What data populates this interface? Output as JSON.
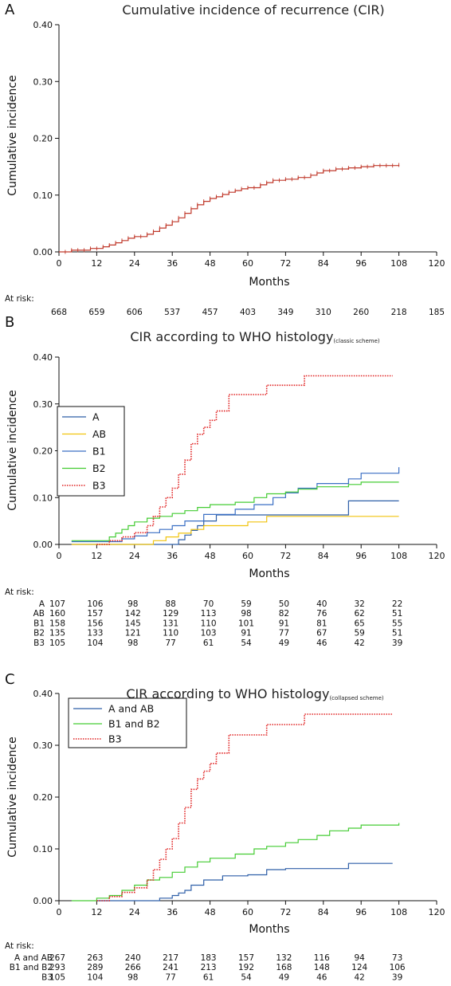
{
  "panels": [
    {
      "letter": "A",
      "title": "Cumulative incidence of recurrence (CIR)",
      "title_small": "",
      "ylabel": "Cumulative incidence",
      "xlabel": "Months",
      "at_risk_label": "At risk:",
      "risk_columns": [
        0,
        12,
        24,
        36,
        48,
        60,
        72,
        84,
        96,
        108,
        120
      ],
      "risk_rows": [
        {
          "label": "",
          "values": [
            "668",
            "659",
            "606",
            "537",
            "457",
            "403",
            "349",
            "310",
            "260",
            "218",
            "185"
          ]
        }
      ]
    },
    {
      "letter": "B",
      "title": "CIR according to WHO histology",
      "title_small": "(classic scheme)",
      "ylabel": "Cumulative incidence",
      "xlabel": "Months",
      "at_risk_label": "At risk:",
      "risk_columns": [
        0,
        12,
        24,
        36,
        48,
        60,
        72,
        84,
        96,
        108
      ],
      "risk_rows": [
        {
          "label": "A",
          "values": [
            "107",
            "106",
            "98",
            "88",
            "70",
            "59",
            "50",
            "40",
            "32",
            "22"
          ]
        },
        {
          "label": "AB",
          "values": [
            "160",
            "157",
            "142",
            "129",
            "113",
            "98",
            "82",
            "76",
            "62",
            "51"
          ]
        },
        {
          "label": "B1",
          "values": [
            "158",
            "156",
            "145",
            "131",
            "110",
            "101",
            "91",
            "81",
            "65",
            "55"
          ]
        },
        {
          "label": "B2",
          "values": [
            "135",
            "133",
            "121",
            "110",
            "103",
            "91",
            "77",
            "67",
            "59",
            "51"
          ]
        },
        {
          "label": "B3",
          "values": [
            "105",
            "104",
            "98",
            "77",
            "61",
            "54",
            "49",
            "46",
            "42",
            "39"
          ]
        }
      ]
    },
    {
      "letter": "C",
      "title": "CIR according to WHO histology",
      "title_small": "(collapsed scheme)",
      "ylabel": "Cumulative incidence",
      "xlabel": "Months",
      "at_risk_label": "At risk:",
      "risk_columns": [
        0,
        12,
        24,
        36,
        48,
        60,
        72,
        84,
        96,
        108
      ],
      "risk_rows": [
        {
          "label": "A and AB",
          "values": [
            "267",
            "263",
            "240",
            "217",
            "183",
            "157",
            "132",
            "116",
            "94",
            "73"
          ]
        },
        {
          "label": "B1 and B2",
          "values": [
            "293",
            "289",
            "266",
            "241",
            "213",
            "192",
            "168",
            "148",
            "124",
            "106"
          ]
        },
        {
          "label": "B3",
          "values": [
            "105",
            "104",
            "98",
            "77",
            "61",
            "54",
            "49",
            "46",
            "42",
            "39"
          ]
        }
      ]
    }
  ],
  "chart_data": [
    {
      "type": "line",
      "step": true,
      "title": "Cumulative incidence of recurrence (CIR)",
      "xlabel": "Months",
      "ylabel": "Cumulative incidence",
      "xlim": [
        0,
        120
      ],
      "ylim": [
        0,
        0.4
      ],
      "xticks": [
        "0",
        "12",
        "24",
        "36",
        "48",
        "60",
        "72",
        "84",
        "96",
        "108",
        "120"
      ],
      "yticks": [
        "0.00",
        "0.10",
        "0.20",
        "0.30",
        "0.40"
      ],
      "grid": false,
      "legend": null,
      "series": [
        {
          "color": "#c0392b",
          "dash": "solid",
          "censor_marks": true,
          "x": [
            0,
            4,
            10,
            14,
            16,
            18,
            20,
            22,
            24,
            28,
            30,
            32,
            34,
            36,
            38,
            40,
            42,
            44,
            46,
            48,
            50,
            52,
            54,
            56,
            58,
            60,
            64,
            66,
            68,
            72,
            76,
            80,
            82,
            84,
            88,
            92,
            96,
            100,
            108
          ],
          "y": [
            0.0,
            0.003,
            0.006,
            0.009,
            0.012,
            0.016,
            0.02,
            0.024,
            0.027,
            0.031,
            0.036,
            0.042,
            0.047,
            0.053,
            0.06,
            0.068,
            0.076,
            0.083,
            0.089,
            0.094,
            0.097,
            0.101,
            0.105,
            0.108,
            0.111,
            0.113,
            0.118,
            0.122,
            0.126,
            0.128,
            0.131,
            0.135,
            0.139,
            0.143,
            0.146,
            0.148,
            0.15,
            0.152,
            0.153
          ]
        }
      ]
    },
    {
      "type": "line",
      "step": true,
      "title": "CIR according to WHO histology (classic scheme)",
      "xlabel": "Months",
      "ylabel": "Cumulative incidence",
      "xlim": [
        0,
        120
      ],
      "ylim": [
        0,
        0.4
      ],
      "xticks": [
        "0",
        "12",
        "24",
        "36",
        "48",
        "60",
        "72",
        "84",
        "96",
        "108",
        "120"
      ],
      "yticks": [
        "0.00",
        "0.10",
        "0.20",
        "0.30",
        "0.40"
      ],
      "grid": false,
      "legend": "left",
      "series": [
        {
          "name": "A",
          "color": "#2e5fa8",
          "dash": "solid",
          "x": [
            4,
            14,
            38,
            40,
            42,
            44,
            46,
            50,
            92,
            108
          ],
          "y": [
            0.0,
            0.0,
            0.01,
            0.02,
            0.03,
            0.04,
            0.05,
            0.063,
            0.093,
            0.093
          ]
        },
        {
          "name": "AB",
          "color": "#f1c40f",
          "dash": "solid",
          "x": [
            4,
            28,
            30,
            34,
            38,
            42,
            46,
            60,
            66,
            108
          ],
          "y": [
            0.0,
            0.0,
            0.008,
            0.016,
            0.024,
            0.032,
            0.04,
            0.048,
            0.06,
            0.06
          ]
        },
        {
          "name": "B1",
          "color": "#3a6fc4",
          "dash": "solid",
          "x": [
            4,
            16,
            20,
            24,
            28,
            32,
            36,
            40,
            46,
            56,
            62,
            68,
            72,
            76,
            82,
            92,
            96,
            108
          ],
          "y": [
            0.006,
            0.006,
            0.012,
            0.018,
            0.025,
            0.032,
            0.04,
            0.05,
            0.064,
            0.075,
            0.085,
            0.1,
            0.11,
            0.12,
            0.13,
            0.14,
            0.152,
            0.165
          ]
        },
        {
          "name": "B2",
          "color": "#44cc33",
          "dash": "solid",
          "x": [
            4,
            12,
            16,
            18,
            20,
            22,
            24,
            28,
            32,
            36,
            40,
            44,
            48,
            56,
            62,
            66,
            72,
            76,
            82,
            92,
            96,
            108
          ],
          "y": [
            0.008,
            0.008,
            0.016,
            0.024,
            0.032,
            0.04,
            0.048,
            0.056,
            0.06,
            0.066,
            0.072,
            0.079,
            0.085,
            0.09,
            0.1,
            0.108,
            0.112,
            0.118,
            0.123,
            0.128,
            0.133,
            0.133
          ]
        },
        {
          "name": "B3",
          "color": "#e02020",
          "dash": "dotted",
          "x": [
            12,
            16,
            20,
            24,
            28,
            30,
            32,
            34,
            36,
            38,
            40,
            42,
            44,
            46,
            48,
            50,
            54,
            66,
            78,
            106
          ],
          "y": [
            0.0,
            0.008,
            0.016,
            0.025,
            0.04,
            0.06,
            0.08,
            0.1,
            0.12,
            0.15,
            0.18,
            0.215,
            0.235,
            0.25,
            0.265,
            0.285,
            0.32,
            0.34,
            0.36,
            0.36
          ]
        }
      ]
    },
    {
      "type": "line",
      "step": true,
      "title": "CIR according to WHO histology (collapsed scheme)",
      "xlabel": "Months",
      "ylabel": "Cumulative incidence",
      "xlim": [
        0,
        120
      ],
      "ylim": [
        0,
        0.4
      ],
      "xticks": [
        "0",
        "12",
        "24",
        "36",
        "48",
        "60",
        "72",
        "84",
        "96",
        "108",
        "120"
      ],
      "yticks": [
        "0.00",
        "0.10",
        "0.20",
        "0.30",
        "0.40"
      ],
      "grid": false,
      "legend": "top-left",
      "series": [
        {
          "name": "A and AB",
          "color": "#2e5fa8",
          "dash": "solid",
          "x": [
            12,
            28,
            32,
            36,
            38,
            40,
            42,
            46,
            52,
            60,
            66,
            72,
            92,
            106
          ],
          "y": [
            0.0,
            0.0,
            0.005,
            0.01,
            0.015,
            0.02,
            0.03,
            0.04,
            0.048,
            0.05,
            0.06,
            0.062,
            0.072,
            0.072
          ]
        },
        {
          "name": "B1 and B2",
          "color": "#44cc33",
          "dash": "solid",
          "x": [
            4,
            12,
            16,
            20,
            24,
            28,
            32,
            36,
            40,
            44,
            48,
            56,
            62,
            66,
            72,
            76,
            82,
            86,
            92,
            96,
            108
          ],
          "y": [
            0.0,
            0.005,
            0.01,
            0.02,
            0.03,
            0.04,
            0.045,
            0.055,
            0.065,
            0.075,
            0.082,
            0.09,
            0.1,
            0.105,
            0.112,
            0.118,
            0.126,
            0.135,
            0.14,
            0.146,
            0.15
          ]
        },
        {
          "name": "B3",
          "color": "#e02020",
          "dash": "dotted",
          "x": [
            12,
            16,
            20,
            24,
            28,
            30,
            32,
            34,
            36,
            38,
            40,
            42,
            44,
            46,
            48,
            50,
            54,
            66,
            78,
            106
          ],
          "y": [
            0.0,
            0.008,
            0.016,
            0.025,
            0.04,
            0.06,
            0.08,
            0.1,
            0.12,
            0.15,
            0.18,
            0.215,
            0.235,
            0.25,
            0.265,
            0.285,
            0.32,
            0.34,
            0.36,
            0.36
          ]
        }
      ]
    }
  ]
}
